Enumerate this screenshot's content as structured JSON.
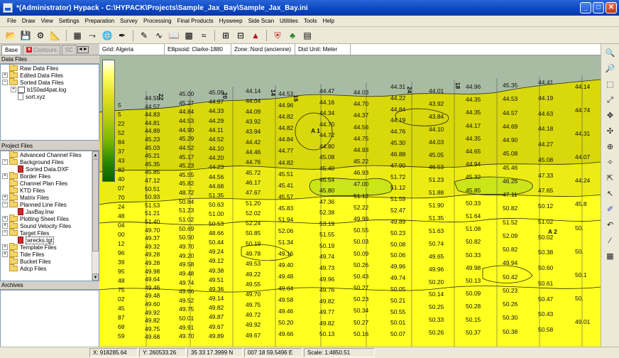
{
  "window": {
    "title": "*(Administrator) Hypack - C:\\HYPACK\\Projects\\Sample_Jax_Bay\\Sample_Jax_Bay.ini",
    "minimize": "_",
    "maximize": "□",
    "close": "✕"
  },
  "menu": [
    "File",
    "Draw",
    "View",
    "Settings",
    "Preparation",
    "Survey",
    "Processing",
    "Final Products",
    "Hysweep",
    "Side Scan",
    "Utilities",
    "Tools",
    "Help"
  ],
  "toolbar_icons": [
    "open-folder-icon",
    "save-icon",
    "gear-icon",
    "ruler-icon",
    "chart-icon",
    "line-tool-icon",
    "globe-icon",
    "pen-icon",
    "edit-icon",
    "draw-icon",
    "book-icon",
    "mosaic-icon",
    "wave-icon",
    "grid-icon",
    "window-icon",
    "boat-icon",
    "shield-icon",
    "tree-icon",
    "matrix-icon"
  ],
  "left_tabs": {
    "base": "Base",
    "contours": "Contours",
    "sc": "SC",
    "scroll": "◄►"
  },
  "data_files": {
    "header": "Data Files",
    "items": [
      {
        "label": "Raw Data Files",
        "expander": "",
        "icon": "folder"
      },
      {
        "label": "Edited Data Files",
        "expander": "+",
        "icon": "folder"
      },
      {
        "label": "Sorted Data Files",
        "expander": "−",
        "icon": "folder"
      },
      {
        "label": "b150ad4pat.log",
        "expander": "+",
        "icon": "log",
        "indent": 1
      },
      {
        "label": "sort.xyz",
        "expander": "",
        "icon": "file",
        "indent": 1
      }
    ]
  },
  "project_files": {
    "header": "Project Files",
    "items": [
      {
        "label": "Advanced Channel Files",
        "expander": "",
        "icon": "folder"
      },
      {
        "label": "Background Files",
        "expander": "−",
        "icon": "folder"
      },
      {
        "label": "Sorted Data.DXF",
        "expander": "",
        "icon": "red",
        "indent": 1
      },
      {
        "label": "Border Files",
        "expander": "+",
        "icon": "folder"
      },
      {
        "label": "Channel Plan Files",
        "expander": "",
        "icon": "folder"
      },
      {
        "label": "KTD Files",
        "expander": "",
        "icon": "folder"
      },
      {
        "label": "Matrix Files",
        "expander": "+",
        "icon": "folder"
      },
      {
        "label": "Planned Line Files",
        "expander": "−",
        "icon": "folder"
      },
      {
        "label": "JaxBay.lnw",
        "expander": "",
        "icon": "red",
        "indent": 1
      },
      {
        "label": "Plotting Sheet Files",
        "expander": "+",
        "icon": "folder"
      },
      {
        "label": "Sound Velocity Files",
        "expander": "+",
        "icon": "folder"
      },
      {
        "label": "Target Files",
        "expander": "−",
        "icon": "folder"
      },
      {
        "label": "wrecks.tgt",
        "expander": "",
        "icon": "red",
        "indent": 1,
        "selected": true
      },
      {
        "label": "Template Files",
        "expander": "+",
        "icon": "folder"
      },
      {
        "label": "Tide Files",
        "expander": "+",
        "icon": "folder"
      },
      {
        "label": "Bucket Files",
        "expander": "",
        "icon": "folder"
      },
      {
        "label": "Adcp Files",
        "expander": "",
        "icon": "folder"
      }
    ]
  },
  "archives": {
    "header": "Archives"
  },
  "map_header": {
    "grid": "Grid: Algeria",
    "ellipsoid": "Ellipsoid: Clarke-1880",
    "zone": "Zone: Nord (ancienne)",
    "units": "Dist Unit: Meter"
  },
  "colors": {
    "land": "#a8bca4",
    "shallow": "#d8d80a",
    "mid": "#ffff20",
    "deep": "#e6f000",
    "channel": "#b8e020"
  },
  "target_labels": [
    "A 1",
    "A 2"
  ],
  "line_labels": [
    "22",
    "24",
    "18",
    "16",
    "14",
    "20"
  ],
  "soundings": {
    "col1": [
      "5",
      "5",
      "22",
      "52",
      "84",
      "37",
      "43",
      "82",
      "40",
      "07",
      "70",
      "24",
      "48",
      "04",
      "00",
      "12",
      "96",
      "39",
      "95",
      "48",
      "75",
      "02",
      "45",
      "87",
      "68",
      "59"
    ],
    "col2": [
      "44.59",
      "44.57",
      "44.83",
      "44.81",
      "44.89",
      "45.23",
      "45.03",
      "45.21",
      "45.35",
      "45.85",
      "47.12",
      "50.51",
      "50.93",
      "51.53",
      "51.21",
      "51.40",
      "49.70",
      "49.37",
      "49.32",
      "49.28",
      "49.28",
      "49.98",
      "49.64",
      "49.46",
      "49.48",
      "49.60",
      "49.92",
      "49.82",
      "49.75",
      "49.68"
    ],
    "col3": [
      "45.00",
      "45.27",
      "44.84",
      "44.53",
      "44.90",
      "45.29",
      "44.52",
      "45.17",
      "45.23",
      "45.55",
      "45.82",
      "48.72",
      "50.84",
      "51.23",
      "51.02",
      "50.69",
      "50.50",
      "49.70",
      "49.20",
      "49.58",
      "49.48",
      "49.74",
      "49.66",
      "49.52",
      "49.75",
      "50.01",
      "49.91",
      "49.70"
    ],
    "col4": [
      "45.09",
      "44.87",
      "44.33",
      "44.29",
      "44.11",
      "44.52",
      "44.10",
      "44.20",
      "44.23",
      "44.56",
      "44.68",
      "51.35",
      "50.63",
      "51.00",
      "50.53",
      "48.66",
      "50.44",
      "49.24",
      "49.12",
      "49.38",
      "49.51",
      "49.36",
      "49.14",
      "49.82",
      "49.87",
      "49.67",
      "49.89"
    ],
    "col5": [
      "44.14",
      "44.04",
      "44.09",
      "43.92",
      "43.94",
      "44.42",
      "44.46",
      "44.76",
      "45.72",
      "46.17",
      "47.67",
      "51.20",
      "52.02",
      "52.24",
      "50.85",
      "50.19",
      "49.78",
      "49.53",
      "49.22",
      "49.55",
      "49.70",
      "49.75",
      "49.72",
      "49.92",
      "49.67"
    ],
    "col6": [
      "44.53",
      "44.96",
      "44.82",
      "44.82",
      "44.84",
      "44.77",
      "44.82",
      "45.51",
      "45.41",
      "45.57",
      "45.83",
      "51.94",
      "52.06",
      "51.34",
      "49.16",
      "49.40",
      "49.48",
      "49.64",
      "49.58",
      "49.46",
      "50.20",
      "49.66"
    ],
    "col7": [
      "44.47",
      "44.16",
      "44.34",
      "44.70",
      "44.72",
      "44.80",
      "45.08",
      "45.40",
      "45.54",
      "45.80",
      "47.36",
      "52.38",
      "53.19",
      "51.55",
      "50.19",
      "49.74",
      "49.73",
      "49.96",
      "49.76",
      "49.82",
      "49.77",
      "49.82",
      "50.13"
    ],
    "col8": [
      "44.03",
      "44.70",
      "44.37",
      "44.56",
      "44.75",
      "44.93",
      "45.22",
      "46.93",
      "47.00",
      "51.12",
      "52.22",
      "49.99",
      "50.55",
      "50.03",
      "50.09",
      "50.26",
      "50.43",
      "50.27",
      "50.23",
      "50.34",
      "50.27",
      "50.16"
    ],
    "col9": [
      "44.31",
      "44.22",
      "44.84",
      "44.19",
      "44.76",
      "45.30",
      "46.88",
      "47.90",
      "51.72",
      "51.12",
      "51.59",
      "52.47",
      "49.89",
      "50.23",
      "50.08",
      "50.06",
      "49.96",
      "49.74",
      "50.05",
      "50.21",
      "50.55",
      "50.01",
      "50.07"
    ],
    "col10": [
      "44.01",
      "43.92",
      "43.84",
      "44.10",
      "44.03",
      "45.05",
      "46.53",
      "51.23",
      "51.88",
      "51.90",
      "51.35",
      "51.63",
      "50.74",
      "49.65",
      "49.96",
      "50.20",
      "50.14",
      "50.25",
      "50.33",
      "50.26"
    ],
    "col11": [
      "44.96",
      "44.35",
      "44.35",
      "44.17",
      "44.35",
      "44.65",
      "44.94",
      "45.32",
      "45.85",
      "50.33",
      "51.64",
      "51.08",
      "50.82",
      "50.33",
      "49.98",
      "50.13",
      "50.09",
      "50.28",
      "50.15",
      "50.37"
    ],
    "col12": [
      "45.35",
      "44.53",
      "44.57",
      "44.69",
      "44.90",
      "45.08",
      "45.46",
      "46.26",
      "47.11",
      "50.82",
      "51.52",
      "52.09",
      "50.82",
      "49.94",
      "50.42",
      "50.23",
      "50.26",
      "50.30",
      "50.38"
    ],
    "col13": [
      "44.41",
      "44.19",
      "44.63",
      "44.18",
      "44.27",
      "45.08",
      "47.33",
      "47.65",
      "50.12",
      "51.02",
      "50.02",
      "50.38",
      "50.60",
      "50.61",
      "50.47",
      "50.43",
      "50.58"
    ],
    "col14": [
      "44.14",
      "44.74",
      "44.31",
      "44.07",
      "44.24",
      "45.8",
      "50.",
      "50.",
      "50.1",
      "50.",
      "49.01"
    ]
  },
  "status": {
    "x": "X: 918285.64",
    "y": "Y: 260533.26",
    "lat": "35 33 17.3999 N",
    "lon": "007 18 59.5496 E",
    "scale": "Scale: 1:4850.51"
  },
  "right_tools": [
    "zoom-in-icon",
    "zoom-out-icon",
    "zoom-window-icon",
    "zoom-extents-icon",
    "pan-icon",
    "center-icon",
    "target-icon",
    "compass-icon",
    "select-icon",
    "pointer-icon",
    "pen-tool-icon",
    "undo-icon",
    "measure-icon",
    "legend-icon"
  ]
}
